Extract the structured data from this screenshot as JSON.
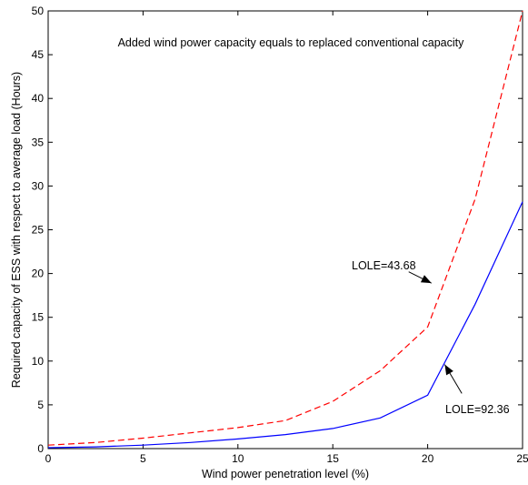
{
  "chart_data": {
    "type": "line",
    "xlabel": "Wind power penetration level (%)",
    "ylabel": "Required capacity of ESS with respect to average load (Hours)",
    "xlim": [
      0,
      25
    ],
    "ylim": [
      0,
      50
    ],
    "x_ticks": [
      0,
      5,
      10,
      15,
      20,
      25
    ],
    "y_ticks": [
      0,
      5,
      10,
      15,
      20,
      25,
      30,
      35,
      40,
      45,
      50
    ],
    "grid": false,
    "legend": "none",
    "series": [
      {
        "color": "#ff0000",
        "dash": "dashed",
        "x": [
          0,
          2.5,
          5,
          7.5,
          10,
          12.5,
          15,
          17.5,
          20,
          22.5,
          25
        ],
        "y": [
          0.4,
          0.7,
          1.2,
          1.8,
          2.4,
          3.2,
          5.4,
          8.9,
          13.9,
          28.5,
          50
        ]
      },
      {
        "color": "#0000ff",
        "dash": "solid",
        "x": [
          0,
          2.5,
          5,
          7.5,
          10,
          12.5,
          15,
          17.5,
          20,
          22.5,
          25
        ],
        "y": [
          0.1,
          0.2,
          0.4,
          0.7,
          1.1,
          1.6,
          2.3,
          3.5,
          6.1,
          16.5,
          28.2
        ]
      }
    ],
    "annotations": [
      {
        "text": "Added wind power capacity equals to replaced conventional capacity"
      },
      {
        "text": "LOLE=43.68",
        "arrow_from": [
          19.0,
          20.2
        ],
        "arrow_to": [
          20.2,
          18.9
        ]
      },
      {
        "text": "LOLE=92.36",
        "arrow_from": [
          21.8,
          6.3
        ],
        "arrow_to": [
          20.9,
          9.6
        ]
      }
    ]
  }
}
